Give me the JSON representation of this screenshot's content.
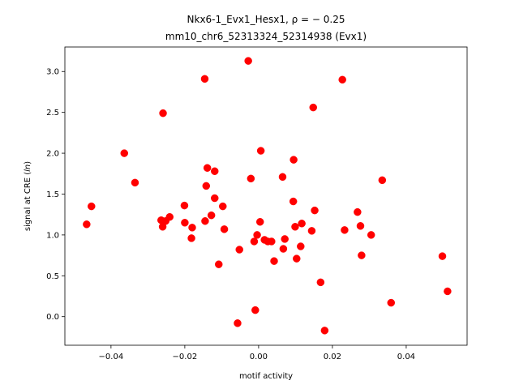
{
  "chart_data": {
    "type": "scatter",
    "title_line1": "Nkx6-1_Evx1_Hesx1, ρ = − 0.25",
    "title_line2": "mm10_chr6_52313324_52314938 (Evx1)",
    "xlabel": "motif activity",
    "ylabel": "signal at CRE (ln)",
    "xlim": [
      -0.0525,
      0.0565
    ],
    "ylim": [
      -0.35,
      3.3
    ],
    "xticks": [
      -0.04,
      -0.02,
      0.0,
      0.02,
      0.04
    ],
    "xtick_labels": [
      "−0.04",
      "−0.02",
      "0.00",
      "0.02",
      "0.04"
    ],
    "yticks": [
      0.0,
      0.5,
      1.0,
      1.5,
      2.0,
      2.5,
      3.0
    ],
    "ytick_labels": [
      "0.0",
      "0.5",
      "1.0",
      "1.5",
      "2.0",
      "2.5",
      "3.0"
    ],
    "grid": false,
    "marker_color": "#ff0000",
    "points": [
      {
        "x": -0.0466,
        "y": 1.13
      },
      {
        "x": -0.0453,
        "y": 1.35
      },
      {
        "x": -0.0364,
        "y": 2.0
      },
      {
        "x": -0.0335,
        "y": 1.64
      },
      {
        "x": -0.0264,
        "y": 1.18
      },
      {
        "x": -0.026,
        "y": 1.1
      },
      {
        "x": -0.0259,
        "y": 2.49
      },
      {
        "x": -0.0252,
        "y": 1.17
      },
      {
        "x": -0.0241,
        "y": 1.22
      },
      {
        "x": -0.0201,
        "y": 1.36
      },
      {
        "x": -0.02,
        "y": 1.15
      },
      {
        "x": -0.0182,
        "y": 0.96
      },
      {
        "x": -0.018,
        "y": 1.09
      },
      {
        "x": -0.0146,
        "y": 2.91
      },
      {
        "x": -0.0145,
        "y": 1.17
      },
      {
        "x": -0.0142,
        "y": 1.6
      },
      {
        "x": -0.0139,
        "y": 1.82
      },
      {
        "x": -0.0128,
        "y": 1.24
      },
      {
        "x": -0.0119,
        "y": 1.45
      },
      {
        "x": -0.0119,
        "y": 1.78
      },
      {
        "x": -0.0108,
        "y": 0.64
      },
      {
        "x": -0.0097,
        "y": 1.35
      },
      {
        "x": -0.0093,
        "y": 1.07
      },
      {
        "x": -0.0057,
        "y": -0.08
      },
      {
        "x": -0.0052,
        "y": 0.82
      },
      {
        "x": -0.0028,
        "y": 3.13
      },
      {
        "x": -0.0021,
        "y": 1.69
      },
      {
        "x": -0.0012,
        "y": 0.92
      },
      {
        "x": -0.0009,
        "y": 0.08
      },
      {
        "x": -0.0004,
        "y": 1.0
      },
      {
        "x": 0.0004,
        "y": 1.16
      },
      {
        "x": 0.0006,
        "y": 2.03
      },
      {
        "x": 0.0016,
        "y": 0.94
      },
      {
        "x": 0.0025,
        "y": 0.92
      },
      {
        "x": 0.0035,
        "y": 0.92
      },
      {
        "x": 0.0042,
        "y": 0.68
      },
      {
        "x": 0.0065,
        "y": 1.71
      },
      {
        "x": 0.0067,
        "y": 0.83
      },
      {
        "x": 0.0071,
        "y": 0.95
      },
      {
        "x": 0.0094,
        "y": 1.41
      },
      {
        "x": 0.0095,
        "y": 1.92
      },
      {
        "x": 0.0099,
        "y": 1.1
      },
      {
        "x": 0.0103,
        "y": 0.71
      },
      {
        "x": 0.0114,
        "y": 0.86
      },
      {
        "x": 0.0117,
        "y": 1.14
      },
      {
        "x": 0.0144,
        "y": 1.05
      },
      {
        "x": 0.0148,
        "y": 2.56
      },
      {
        "x": 0.0152,
        "y": 1.3
      },
      {
        "x": 0.0168,
        "y": 0.42
      },
      {
        "x": 0.0179,
        "y": -0.17
      },
      {
        "x": 0.0227,
        "y": 2.9
      },
      {
        "x": 0.0233,
        "y": 1.06
      },
      {
        "x": 0.0268,
        "y": 1.28
      },
      {
        "x": 0.0276,
        "y": 1.11
      },
      {
        "x": 0.0279,
        "y": 0.75
      },
      {
        "x": 0.0305,
        "y": 1.0
      },
      {
        "x": 0.0335,
        "y": 1.67
      },
      {
        "x": 0.0359,
        "y": 0.17
      },
      {
        "x": 0.0498,
        "y": 0.74
      },
      {
        "x": 0.0512,
        "y": 0.31
      }
    ]
  }
}
